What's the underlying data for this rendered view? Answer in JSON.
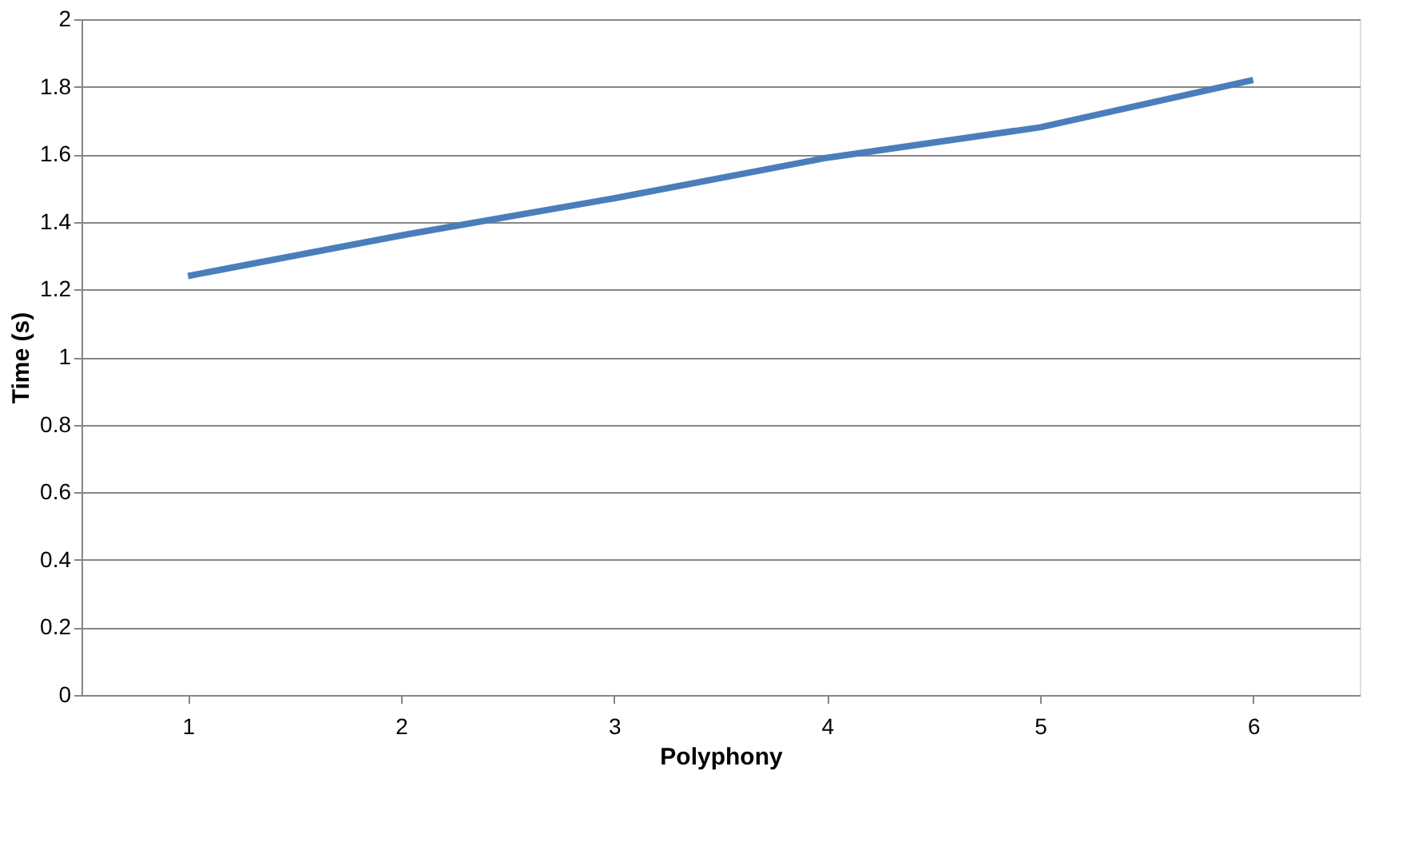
{
  "chart_data": {
    "type": "line",
    "xlabel": "Polyphony",
    "ylabel": "Time (s)",
    "categories": [
      "1",
      "2",
      "3",
      "4",
      "5",
      "6"
    ],
    "series": [
      {
        "color": "#4a7ebb",
        "values": [
          1.24,
          1.36,
          1.47,
          1.59,
          1.68,
          1.82
        ]
      }
    ],
    "ylim": [
      0,
      2
    ],
    "yticks": [
      0,
      0.2,
      0.4,
      0.6,
      0.8,
      1,
      1.2,
      1.4,
      1.6,
      1.8,
      2
    ],
    "grid": "y",
    "marker": "none",
    "line_style": "solid"
  }
}
